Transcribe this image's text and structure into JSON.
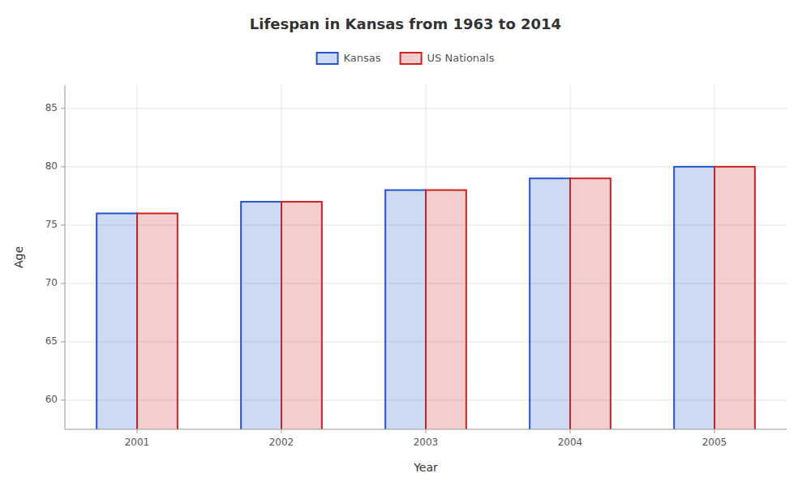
{
  "chart_data": {
    "type": "bar",
    "title": "Lifespan in Kansas from 1963 to 2014",
    "xlabel": "Year",
    "ylabel": "Age",
    "categories": [
      "2001",
      "2002",
      "2003",
      "2004",
      "2005"
    ],
    "series": [
      {
        "name": "Kansas",
        "color": "#2255cc",
        "values": [
          76.0,
          77.0,
          78.0,
          79.0,
          80.0
        ]
      },
      {
        "name": "US Nationals",
        "color": "#cc2222",
        "values": [
          76.0,
          77.0,
          78.0,
          79.0,
          80.0
        ]
      }
    ],
    "ylim": [
      57.5,
      87
    ],
    "yticks": [
      60,
      65,
      70,
      75,
      80,
      85
    ],
    "grid": true,
    "legend": "top"
  }
}
